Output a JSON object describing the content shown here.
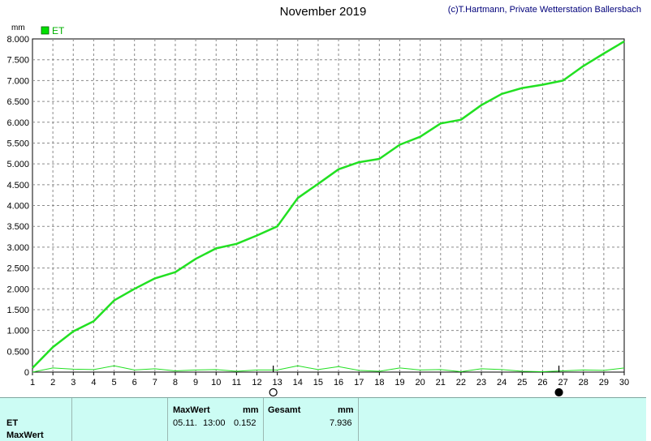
{
  "header": {
    "title": "November 2019",
    "credit": "(c)T.Hartmann, Private Wetterstation Ballersbach"
  },
  "chart_data": {
    "type": "line",
    "unit_label": "mm",
    "legend": [
      {
        "name": "ET",
        "color": "#00e000"
      }
    ],
    "legend_position": "top-left",
    "grid": true,
    "x": [
      1,
      2,
      3,
      4,
      5,
      6,
      7,
      8,
      9,
      10,
      11,
      12,
      13,
      14,
      15,
      16,
      17,
      18,
      19,
      20,
      21,
      22,
      23,
      24,
      25,
      26,
      27,
      28,
      29,
      30
    ],
    "xlim": [
      1,
      30
    ],
    "ylim": [
      0,
      8
    ],
    "y_ticks": [
      "0",
      "0.500",
      "1.000",
      "1.500",
      "2.000",
      "2.500",
      "3.000",
      "3.500",
      "4.000",
      "4.500",
      "5.000",
      "5.500",
      "6.000",
      "6.500",
      "7.000",
      "7.500",
      "8.000"
    ],
    "x_ticks": [
      "1",
      "2",
      "3",
      "4",
      "5",
      "6",
      "7",
      "8",
      "9",
      "10",
      "11",
      "12",
      "13",
      "14",
      "15",
      "16",
      "17",
      "18",
      "19",
      "20",
      "21",
      "22",
      "23",
      "24",
      "25",
      "26",
      "27",
      "28",
      "29",
      "30"
    ],
    "series": [
      {
        "name": "ET",
        "color": "#22e022",
        "width": 2.5,
        "values": [
          0.1,
          0.6,
          0.98,
          1.22,
          1.72,
          2.0,
          2.25,
          2.4,
          2.72,
          2.97,
          3.08,
          3.28,
          3.5,
          4.18,
          4.52,
          4.87,
          5.04,
          5.12,
          5.46,
          5.65,
          5.97,
          6.06,
          6.41,
          6.68,
          6.82,
          6.9,
          7.0,
          7.35,
          7.65,
          7.94
        ]
      },
      {
        "color": "#22e022",
        "width": 1,
        "values": [
          0.0,
          0.1,
          0.07,
          0.06,
          0.15,
          0.05,
          0.08,
          0.03,
          0.05,
          0.06,
          0.02,
          0.05,
          0.05,
          0.15,
          0.06,
          0.13,
          0.04,
          0.02,
          0.1,
          0.05,
          0.06,
          0.01,
          0.08,
          0.06,
          0.02,
          0.01,
          0.03,
          0.05,
          0.04,
          0.1
        ]
      }
    ],
    "markers": [
      {
        "symbol": "open-circle",
        "x": 12.8
      },
      {
        "symbol": "filled-circle",
        "x": 26.8
      }
    ]
  },
  "panel": {
    "row_labels": [
      "ET",
      "MaxWert"
    ],
    "maxwert": {
      "header": "MaxWert",
      "unit": "mm",
      "date": "05.11.",
      "time": "13:00",
      "value": "0.152"
    },
    "gesamt": {
      "header": "Gesamt",
      "unit": "mm",
      "value": "7.936"
    }
  }
}
